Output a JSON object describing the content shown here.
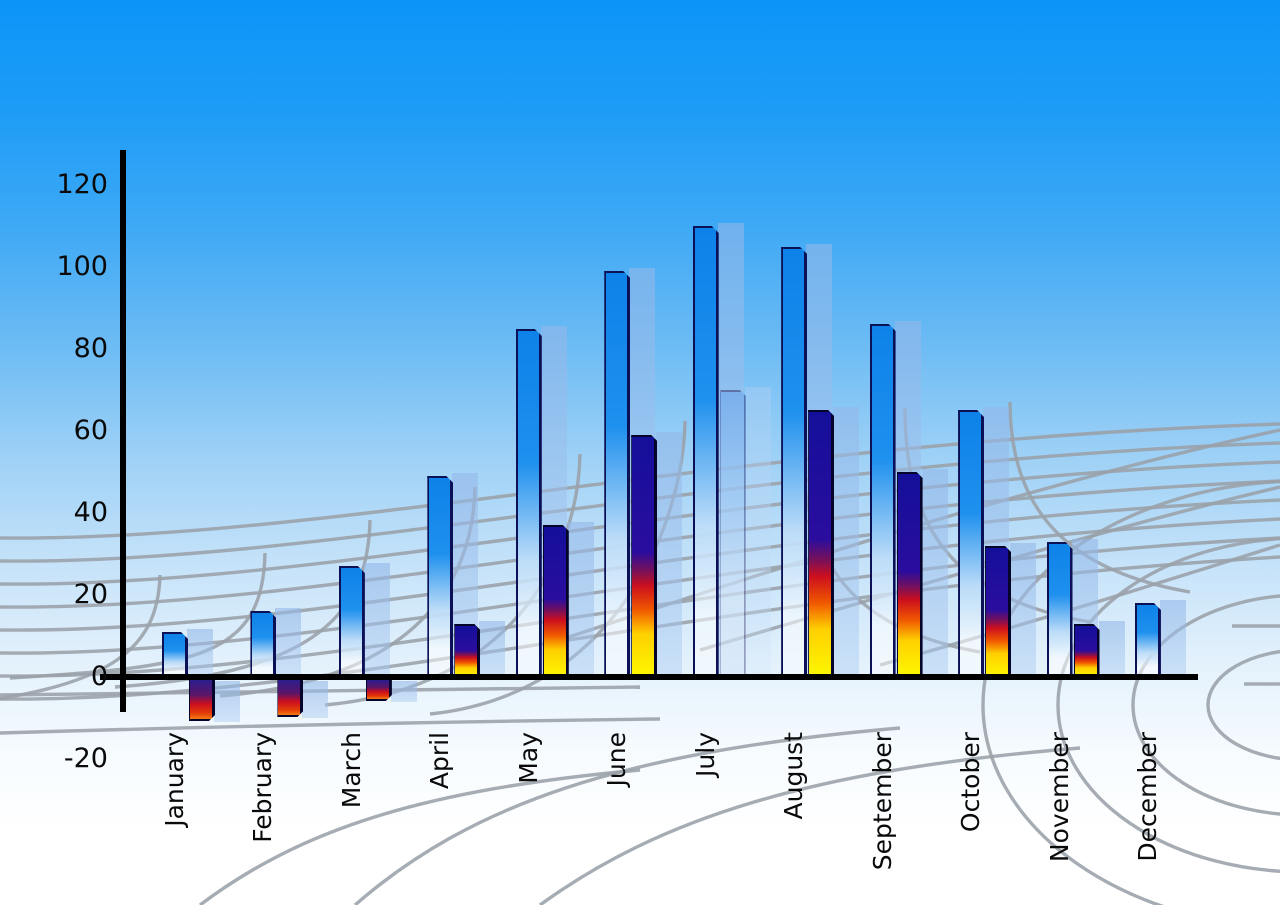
{
  "chart_data": {
    "type": "bar",
    "title": "",
    "xlabel": "",
    "ylabel": "",
    "categories": [
      "January",
      "February",
      "March",
      "April",
      "May",
      "June",
      "July",
      "August",
      "September",
      "October",
      "November",
      "December"
    ],
    "series": [
      {
        "name": "primary-blue-bars",
        "values": [
          11,
          16,
          27,
          49,
          85,
          99,
          110,
          105,
          86,
          65,
          33,
          18
        ]
      },
      {
        "name": "secondary-multicolor-bars",
        "values": [
          -10,
          -9,
          -5,
          13,
          37,
          59,
          70,
          65,
          50,
          32,
          13,
          null
        ]
      }
    ],
    "pale_style_months": [
      "July"
    ],
    "yticks": [
      120,
      100,
      80,
      60,
      40,
      20,
      0,
      -20
    ],
    "ylim": [
      -20,
      120
    ],
    "legend": null,
    "grid": "decorative curved perspective mesh",
    "background": "sky-blue gradient fading to white"
  },
  "colors": {
    "sky_top": "#0b95f8",
    "bar_blue_top": "#0d82e8",
    "bar_blue_mid": "#1e90ee",
    "bar_navy": "#140f9a",
    "bar_red": "#cc0f1e",
    "bar_yellow": "#fef800",
    "shadow_blue": "#93b7e8",
    "grid_gray": "#9aa1a8",
    "axis": "#000000",
    "label_text": "#0a0a0a"
  }
}
